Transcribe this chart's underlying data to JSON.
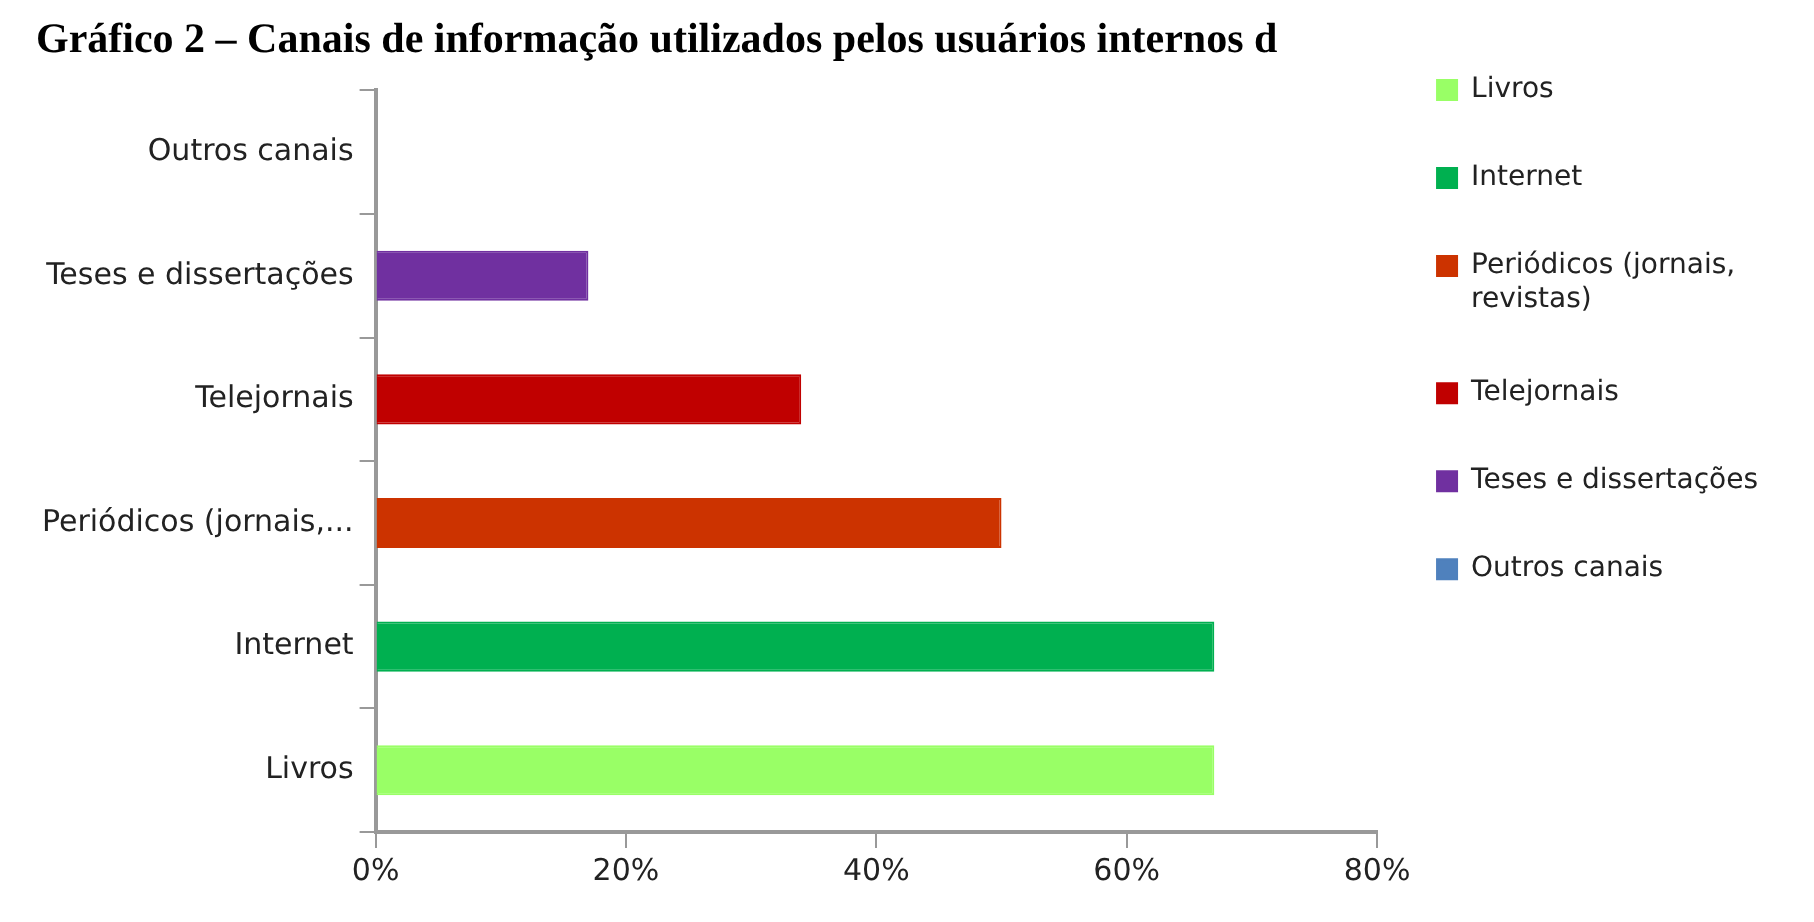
{
  "chart_data": {
    "type": "bar",
    "orientation": "horizontal",
    "title": "Gráfico 2 – Canais de informação utilizados pelos usuários internos d",
    "categories": [
      "Outros canais",
      "Teses e dissertações",
      "Telejornais",
      "Periódicos (jornais,...",
      "Internet",
      "Livros"
    ],
    "series": [
      {
        "name": "Livros",
        "color": "#99ff66",
        "values": [
          null,
          null,
          null,
          null,
          null,
          67
        ]
      },
      {
        "name": "Internet",
        "color": "#00b050",
        "values": [
          null,
          null,
          null,
          null,
          67,
          null
        ]
      },
      {
        "name": "Periódicos (jornais, revistas)",
        "color": "#cc3300",
        "values": [
          null,
          null,
          null,
          50,
          null,
          null
        ]
      },
      {
        "name": "Telejornais",
        "color": "#c00000",
        "values": [
          null,
          null,
          34,
          null,
          null,
          null
        ]
      },
      {
        "name": "Teses e dissertações",
        "color": "#7030a0",
        "values": [
          null,
          17,
          null,
          null,
          null,
          null
        ]
      },
      {
        "name": "Outros canais",
        "color": "#4f81bd",
        "values": [
          0,
          null,
          null,
          null,
          null,
          null
        ]
      }
    ],
    "xlim": [
      0,
      80
    ],
    "xticks": [
      {
        "value": 0,
        "label": "0%"
      },
      {
        "value": 20,
        "label": "20%"
      },
      {
        "value": 40,
        "label": "40%"
      },
      {
        "value": 60,
        "label": "60%"
      },
      {
        "value": 80,
        "label": "80%"
      }
    ],
    "grid": false,
    "legend": "right"
  }
}
